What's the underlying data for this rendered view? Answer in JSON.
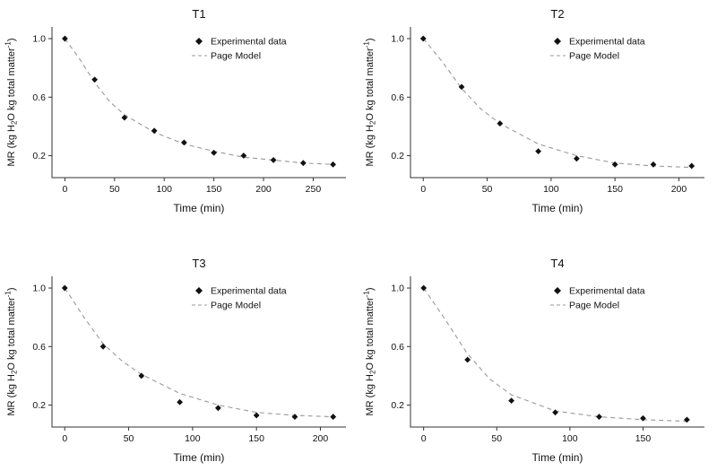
{
  "page": {
    "background": "#ffffff"
  },
  "shared": {
    "ylabel_plain": "MR (kg H2O kg total matter-1)",
    "ylabel_parts": [
      [
        "MR (kg H",
        ""
      ],
      [
        "2",
        "sub"
      ],
      [
        "O kg total matter",
        ""
      ],
      [
        "-1",
        "sup"
      ],
      [
        ")",
        ""
      ]
    ],
    "colors": {
      "point": "#111111",
      "model_line": "#999999",
      "axis": "#333333",
      "text": "#111111"
    }
  },
  "chart_data": [
    {
      "type": "scatter",
      "title": "T1",
      "xlabel": "Time (min)",
      "ylabel": "MR (kg H2O kg total matter-1)",
      "legend": [
        "Experimental data",
        "Page Model"
      ],
      "xlim": [
        -13,
        283
      ],
      "ylim": [
        0.05,
        1.08
      ],
      "xticks": [
        0,
        50,
        100,
        150,
        200,
        250
      ],
      "xtick_labels": [
        "0",
        "50",
        "100",
        "150",
        "200",
        "250"
      ],
      "yticks": [
        0.2,
        0.6,
        1.0
      ],
      "ytick_labels": [
        "0.2",
        "0.6",
        "1.0"
      ],
      "experimental": {
        "x": [
          0,
          30,
          60,
          90,
          120,
          150,
          180,
          210,
          240,
          270
        ],
        "y": [
          1.0,
          0.72,
          0.46,
          0.37,
          0.29,
          0.22,
          0.2,
          0.17,
          0.15,
          0.14
        ]
      },
      "model": {
        "x": [
          0,
          15,
          30,
          45,
          60,
          90,
          120,
          150,
          180,
          210,
          240,
          270
        ],
        "y": [
          1.0,
          0.86,
          0.7,
          0.57,
          0.48,
          0.36,
          0.28,
          0.23,
          0.19,
          0.17,
          0.15,
          0.14
        ]
      }
    },
    {
      "type": "scatter",
      "title": "T2",
      "xlabel": "Time (min)",
      "ylabel": "MR (kg H2O kg total matter-1)",
      "legend": [
        "Experimental data",
        "Page Model"
      ],
      "xlim": [
        -10,
        220
      ],
      "ylim": [
        0.05,
        1.08
      ],
      "xticks": [
        0,
        50,
        100,
        150,
        200
      ],
      "xtick_labels": [
        "0",
        "50",
        "100",
        "150",
        "200"
      ],
      "yticks": [
        0.2,
        0.6,
        1.0
      ],
      "ytick_labels": [
        "0.2",
        "0.6",
        "1.0"
      ],
      "experimental": {
        "x": [
          0,
          30,
          60,
          90,
          120,
          150,
          180,
          210
        ],
        "y": [
          1.0,
          0.67,
          0.42,
          0.23,
          0.18,
          0.14,
          0.14,
          0.13
        ]
      },
      "model": {
        "x": [
          0,
          15,
          30,
          45,
          60,
          90,
          120,
          150,
          180,
          210
        ],
        "y": [
          1.0,
          0.84,
          0.66,
          0.52,
          0.42,
          0.28,
          0.2,
          0.15,
          0.13,
          0.12
        ]
      }
    },
    {
      "type": "scatter",
      "title": "T3",
      "xlabel": "Time (min)",
      "ylabel": "MR (kg H2O kg total matter-1)",
      "legend": [
        "Experimental data",
        "Page Model"
      ],
      "xlim": [
        -10,
        220
      ],
      "ylim": [
        0.05,
        1.08
      ],
      "xticks": [
        0,
        50,
        100,
        150,
        200
      ],
      "xtick_labels": [
        "0",
        "50",
        "100",
        "150",
        "200"
      ],
      "yticks": [
        0.2,
        0.6,
        1.0
      ],
      "ytick_labels": [
        "0.2",
        "0.6",
        "1.0"
      ],
      "experimental": {
        "x": [
          0,
          30,
          60,
          90,
          120,
          150,
          180,
          210
        ],
        "y": [
          1.0,
          0.6,
          0.4,
          0.22,
          0.18,
          0.13,
          0.12,
          0.12
        ]
      },
      "model": {
        "x": [
          0,
          15,
          30,
          45,
          60,
          90,
          120,
          150,
          180,
          210
        ],
        "y": [
          1.0,
          0.8,
          0.62,
          0.5,
          0.41,
          0.28,
          0.2,
          0.15,
          0.13,
          0.12
        ]
      }
    },
    {
      "type": "scatter",
      "title": "T4",
      "xlabel": "Time (min)",
      "ylabel": "MR (kg H2O kg total matter-1)",
      "legend": [
        "Experimental data",
        "Page Model"
      ],
      "xlim": [
        -9,
        192
      ],
      "ylim": [
        0.05,
        1.08
      ],
      "xticks": [
        0,
        50,
        100,
        150
      ],
      "xtick_labels": [
        "0",
        "50",
        "100",
        "150"
      ],
      "yticks": [
        0.2,
        0.6,
        1.0
      ],
      "ytick_labels": [
        "0.2",
        "0.6",
        "1.0"
      ],
      "experimental": {
        "x": [
          0,
          30,
          60,
          90,
          120,
          150,
          180
        ],
        "y": [
          1.0,
          0.51,
          0.23,
          0.15,
          0.12,
          0.11,
          0.1
        ]
      },
      "model": {
        "x": [
          0,
          15,
          30,
          45,
          60,
          90,
          120,
          150,
          180
        ],
        "y": [
          1.0,
          0.78,
          0.55,
          0.38,
          0.27,
          0.16,
          0.12,
          0.1,
          0.09
        ]
      }
    }
  ]
}
